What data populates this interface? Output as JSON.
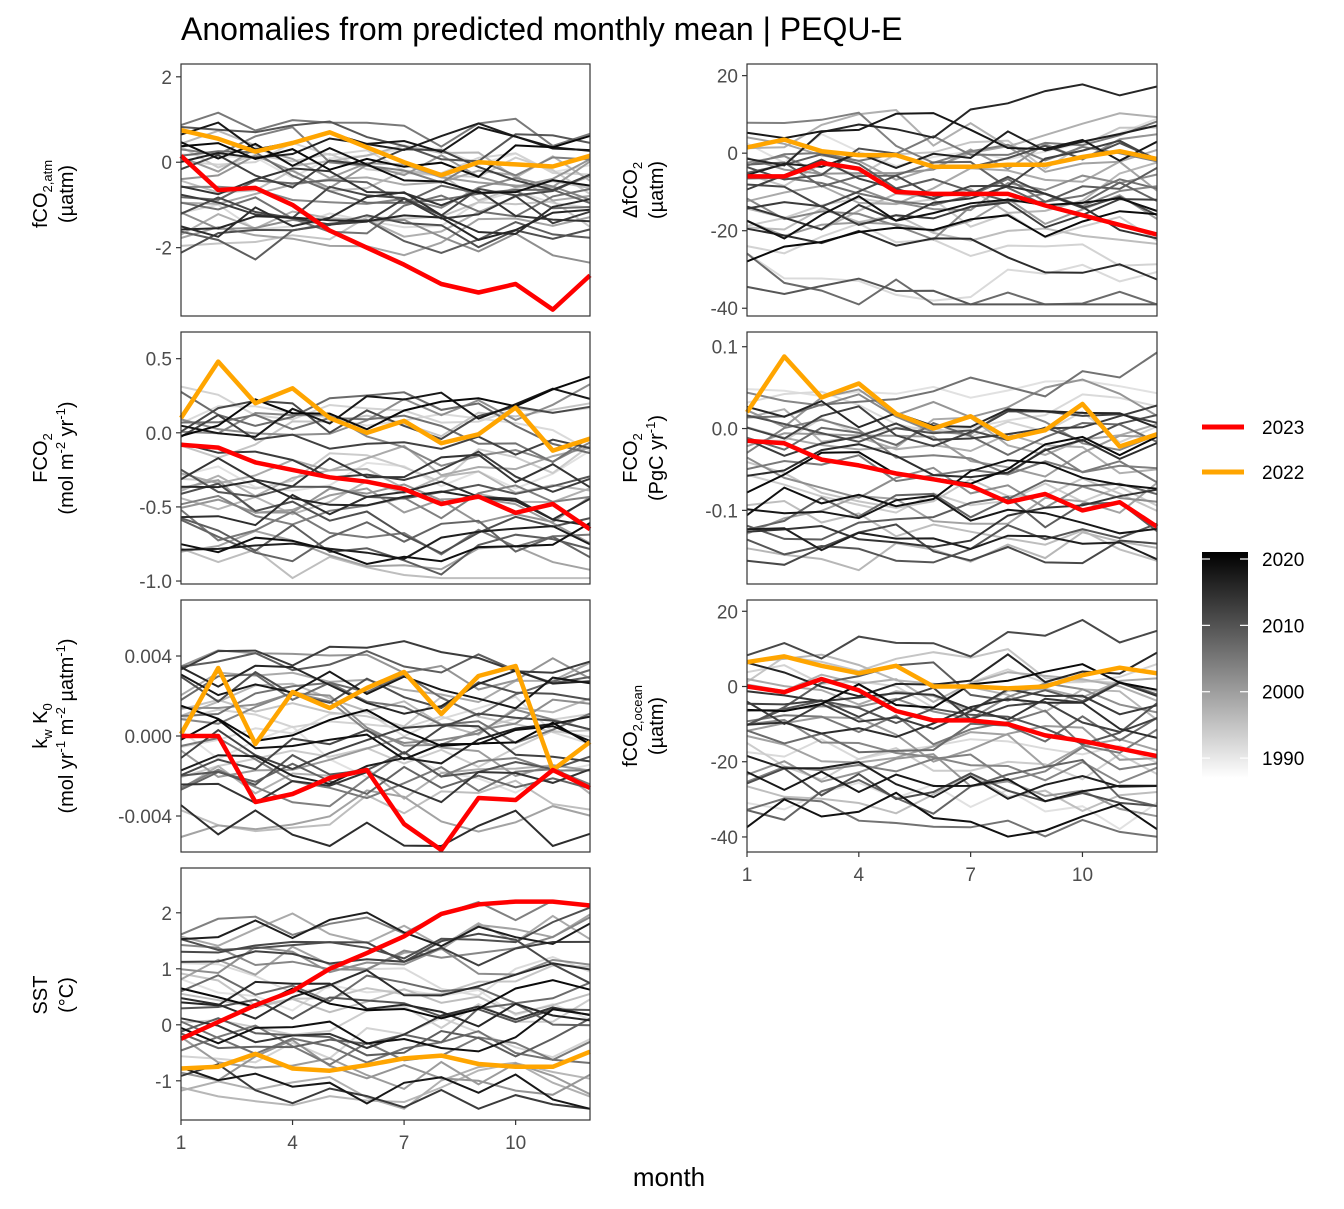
{
  "title": "Anomalies from predicted monthly mean | PEQU-E",
  "x_title": "month",
  "legend": {
    "highlight": [
      {
        "label": "2023",
        "color": "#ff0000"
      },
      {
        "label": "2022",
        "color": "#ffa500"
      }
    ],
    "colorbar": {
      "ticks": [
        "2020",
        "2010",
        "2000",
        "1990"
      ],
      "values": [
        2020,
        2010,
        2000,
        1990
      ],
      "low_color": "#ffffff",
      "high_color": "#000000"
    }
  },
  "ylabels": {
    "fco2atm": {
      "l1a": "fCO",
      "l1sub": "2,atm",
      "l2": "(µatm)"
    },
    "dfco2": {
      "l1a": "ΔfCO",
      "l1sub": "2",
      "l2": "(µatm)"
    },
    "fco2flux": {
      "l1a": "FCO",
      "l1sub": "2",
      "l2a": "(mol m",
      "l2sup1": "-2",
      "l2b": " yr",
      "l2sup2": "-1",
      "l2c": ")"
    },
    "fco2int": {
      "l1a": "FCO",
      "l1sub": "2",
      "l2a": "(PgC yr",
      "l2sup1": "-1",
      "l2c": ")"
    },
    "kw": {
      "l1a": "k",
      "l1sub1": "w",
      "l1b": " K",
      "l1sub2": "0",
      "l2a": "(mol yr",
      "l2sup1": "-1",
      "l2b": " m",
      "l2sup2": "-2",
      "l2c": " µatm",
      "l2sup3": "-1",
      "l2d": ")"
    },
    "fco2ocean": {
      "l1a": "fCO",
      "l1sub": "2,ocean",
      "l2": "(µatm)"
    },
    "sst": {
      "l1": "SST",
      "l2": "(°C)"
    }
  },
  "chart_data": [
    {
      "id": "fco2atm",
      "type": "line",
      "ylim": [
        -3.6,
        2.3
      ],
      "xticks": [
        1,
        4,
        7,
        10
      ],
      "show_xticks": false,
      "yticks": [
        2,
        0,
        -2
      ],
      "ytick_labels": [
        "2",
        "0",
        "-2"
      ],
      "x": [
        1,
        2,
        3,
        4,
        5,
        6,
        7,
        8,
        9,
        10,
        11,
        12
      ],
      "background": {
        "range": [
          -3.4,
          1.9
        ],
        "count": 32
      },
      "highlight": [
        {
          "name": "2023",
          "color": "#ff0000",
          "values": [
            0.15,
            -0.65,
            -0.6,
            -1.0,
            -1.6,
            -2.0,
            -2.4,
            -2.85,
            -3.05,
            -2.85,
            -3.45,
            -2.65
          ]
        },
        {
          "name": "2022",
          "color": "#ffa500",
          "values": [
            0.75,
            0.55,
            0.25,
            0.45,
            0.7,
            0.35,
            0.0,
            -0.3,
            0.0,
            -0.05,
            -0.1,
            0.15
          ]
        }
      ]
    },
    {
      "id": "dfco2",
      "type": "line",
      "ylim": [
        -42,
        23
      ],
      "xticks": [
        1,
        4,
        7,
        10
      ],
      "show_xticks": false,
      "yticks": [
        20,
        0,
        -20,
        -40
      ],
      "ytick_labels": [
        "20",
        "0",
        "-20",
        "-40"
      ],
      "x": [
        1,
        2,
        3,
        4,
        5,
        6,
        7,
        8,
        9,
        10,
        11,
        12
      ],
      "background": {
        "range": [
          -39,
          21
        ],
        "count": 32
      },
      "highlight": [
        {
          "name": "2023",
          "color": "#ff0000",
          "values": [
            -6,
            -6,
            -2.5,
            -4,
            -10,
            -10.5,
            -10.5,
            -10.5,
            -13.5,
            -16,
            -18.5,
            -21
          ]
        },
        {
          "name": "2022",
          "color": "#ffa500",
          "values": [
            1.5,
            3.5,
            0.5,
            -0.5,
            -0.5,
            -3.5,
            -3.5,
            -3.0,
            -3.0,
            -1.0,
            0.5,
            -1.5
          ]
        }
      ]
    },
    {
      "id": "fco2flux",
      "type": "line",
      "ylim": [
        -1.02,
        0.68
      ],
      "xticks": [
        1,
        4,
        7,
        10
      ],
      "show_xticks": false,
      "yticks": [
        0.5,
        0.0,
        -0.5,
        -1.0
      ],
      "ytick_labels": [
        "0.5",
        "0.0",
        "-0.5",
        "-1.0"
      ],
      "x": [
        1,
        2,
        3,
        4,
        5,
        6,
        7,
        8,
        9,
        10,
        11,
        12
      ],
      "background": {
        "range": [
          -0.98,
          0.6
        ],
        "count": 32
      },
      "highlight": [
        {
          "name": "2023",
          "color": "#ff0000",
          "values": [
            -0.08,
            -0.1,
            -0.2,
            -0.25,
            -0.3,
            -0.33,
            -0.38,
            -0.48,
            -0.43,
            -0.54,
            -0.48,
            -0.65
          ]
        },
        {
          "name": "2022",
          "color": "#ffa500",
          "values": [
            0.1,
            0.48,
            0.2,
            0.3,
            0.1,
            0.0,
            0.08,
            -0.07,
            -0.01,
            0.17,
            -0.12,
            -0.04
          ]
        }
      ]
    },
    {
      "id": "fco2int",
      "type": "line",
      "ylim": [
        -0.19,
        0.118
      ],
      "xticks": [
        1,
        4,
        7,
        10
      ],
      "show_xticks": false,
      "yticks": [
        0.1,
        0.0,
        -0.1
      ],
      "ytick_labels": [
        "0.1",
        "0.0",
        "-0.1"
      ],
      "x": [
        1,
        2,
        3,
        4,
        5,
        6,
        7,
        8,
        9,
        10,
        11,
        12
      ],
      "background": {
        "range": [
          -0.18,
          0.1
        ],
        "count": 32
      },
      "highlight": [
        {
          "name": "2023",
          "color": "#ff0000",
          "values": [
            -0.015,
            -0.018,
            -0.038,
            -0.045,
            -0.055,
            -0.062,
            -0.07,
            -0.09,
            -0.08,
            -0.1,
            -0.09,
            -0.12
          ]
        },
        {
          "name": "2022",
          "color": "#ffa500",
          "values": [
            0.02,
            0.088,
            0.038,
            0.055,
            0.018,
            0.0,
            0.015,
            -0.012,
            -0.002,
            0.03,
            -0.022,
            -0.007
          ]
        }
      ]
    },
    {
      "id": "kw",
      "type": "line",
      "ylim": [
        -0.0058,
        0.0068
      ],
      "xticks": [
        1,
        4,
        7,
        10
      ],
      "show_xticks": false,
      "yticks": [
        0.004,
        0.0,
        -0.004
      ],
      "ytick_labels": [
        "0.004",
        "0.000",
        "-0.004"
      ],
      "x": [
        1,
        2,
        3,
        4,
        5,
        6,
        7,
        8,
        9,
        10,
        11,
        12
      ],
      "background": {
        "range": [
          -0.0055,
          0.0065
        ],
        "count": 32
      },
      "highlight": [
        {
          "name": "2023",
          "color": "#ff0000",
          "values": [
            0.0,
            0.0,
            -0.0033,
            -0.0029,
            -0.0021,
            -0.0017,
            -0.0044,
            -0.0057,
            -0.0031,
            -0.0032,
            -0.0017,
            -0.0026
          ]
        },
        {
          "name": "2022",
          "color": "#ffa500",
          "values": [
            0.0001,
            0.0034,
            -0.0004,
            0.0022,
            0.0014,
            0.0024,
            0.0032,
            0.0011,
            0.003,
            0.0035,
            -0.0017,
            -0.0003
          ]
        }
      ]
    },
    {
      "id": "fco2ocean",
      "type": "line",
      "ylim": [
        -44,
        23
      ],
      "xticks": [
        1,
        4,
        7,
        10
      ],
      "show_xticks": true,
      "xtick_labels": [
        "1",
        "4",
        "7",
        "10"
      ],
      "yticks": [
        20,
        0,
        -20,
        -40
      ],
      "ytick_labels": [
        "20",
        "0",
        "-20",
        "-40"
      ],
      "x": [
        1,
        2,
        3,
        4,
        5,
        6,
        7,
        8,
        9,
        10,
        11,
        12
      ],
      "background": {
        "range": [
          -42,
          21
        ],
        "count": 32
      },
      "highlight": [
        {
          "name": "2023",
          "color": "#ff0000",
          "values": [
            0.0,
            -1.5,
            2.0,
            -1.0,
            -6.5,
            -9.0,
            -9.0,
            -10.0,
            -13.0,
            -14.5,
            -16.5,
            -18.5
          ]
        },
        {
          "name": "2022",
          "color": "#ffa500",
          "values": [
            6.5,
            8.0,
            5.5,
            3.5,
            5.5,
            0.0,
            0.0,
            -0.5,
            0.0,
            3.0,
            5.0,
            3.5
          ]
        }
      ]
    },
    {
      "id": "sst",
      "type": "line",
      "ylim": [
        -1.7,
        2.8
      ],
      "xticks": [
        1,
        4,
        7,
        10
      ],
      "show_xticks": true,
      "xtick_labels": [
        "1",
        "4",
        "7",
        "10"
      ],
      "yticks": [
        2,
        1,
        0,
        -1
      ],
      "ytick_labels": [
        "2",
        "1",
        "0",
        "-1"
      ],
      "x": [
        1,
        2,
        3,
        4,
        5,
        6,
        7,
        8,
        9,
        10,
        11,
        12
      ],
      "background": {
        "range": [
          -1.5,
          2.6
        ],
        "count": 32
      },
      "highlight": [
        {
          "name": "2023",
          "color": "#ff0000",
          "values": [
            -0.25,
            0.05,
            0.35,
            0.6,
            1.0,
            1.28,
            1.58,
            1.98,
            2.15,
            2.2,
            2.2,
            2.13
          ]
        },
        {
          "name": "2022",
          "color": "#ffa500",
          "values": [
            -0.78,
            -0.75,
            -0.52,
            -0.78,
            -0.82,
            -0.72,
            -0.6,
            -0.55,
            -0.7,
            -0.75,
            -0.75,
            -0.48
          ]
        }
      ]
    }
  ]
}
